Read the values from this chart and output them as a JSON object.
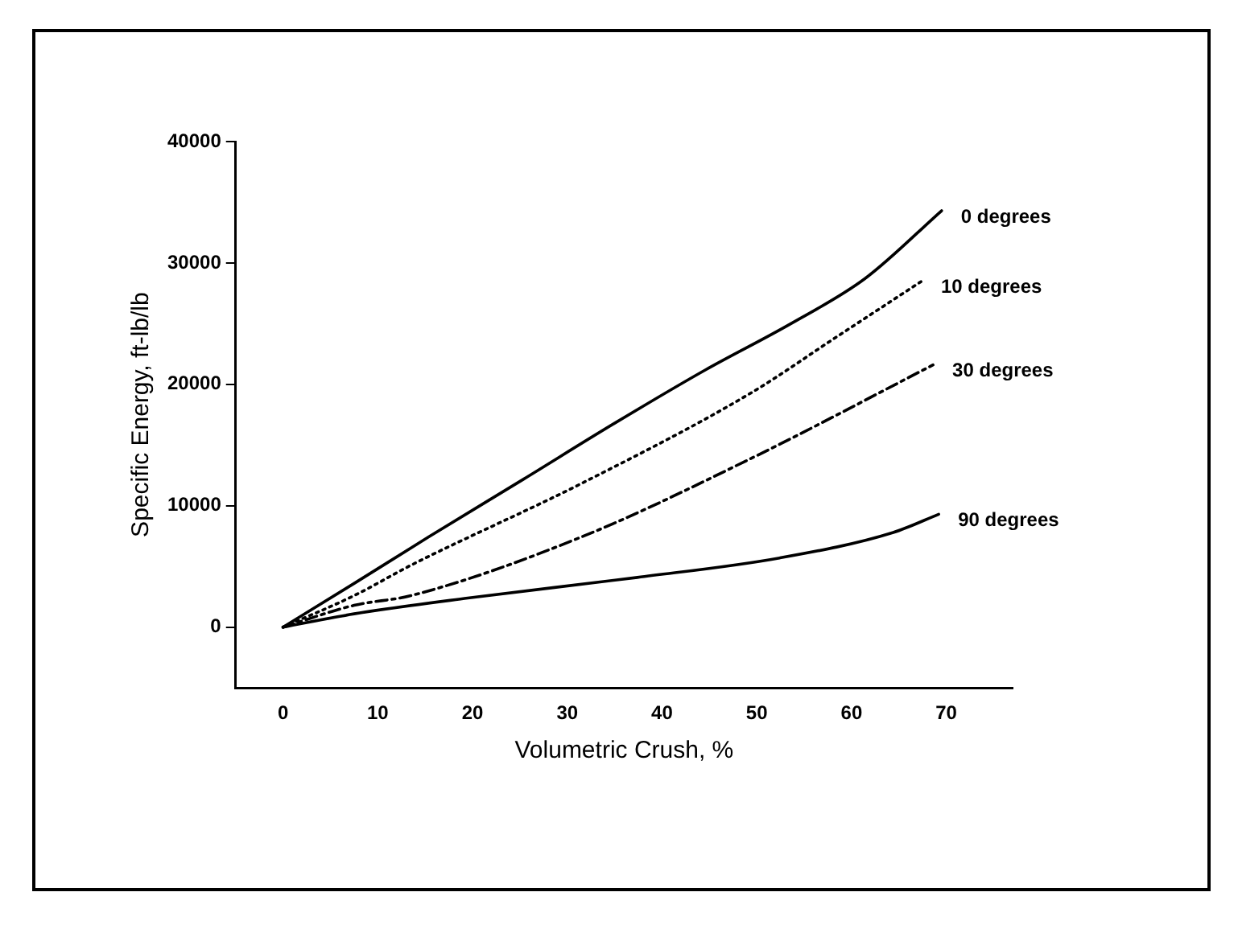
{
  "chart_data": {
    "type": "line",
    "xlabel": "Volumetric Crush, %",
    "ylabel": "Specific Energy, ft-lb/lb",
    "xlim": [
      -5,
      77
    ],
    "xticks": [
      0,
      10,
      20,
      30,
      40,
      50,
      60,
      70
    ],
    "ylim": [
      -5000,
      40000
    ],
    "yticks": [
      0,
      10000,
      20000,
      30000,
      40000
    ],
    "grid": false,
    "legend": false,
    "marker": "none",
    "series": [
      {
        "name": "0 degrees",
        "color": "#000000",
        "line_style": "solid",
        "x": [
          0,
          7.5,
          15.3,
          25.4,
          35,
          44.6,
          53.6,
          61.4,
          69.5
        ],
        "values": [
          0,
          3600,
          7400,
          12200,
          16800,
          21200,
          25000,
          28700,
          34300
        ]
      },
      {
        "name": "10 degrees",
        "color": "#000000",
        "line_style": "dotted",
        "x": [
          0,
          7.5,
          13.5,
          31.4,
          49.4,
          58.4,
          67.4
        ],
        "values": [
          0,
          2600,
          5100,
          11800,
          19300,
          23900,
          28500
        ]
      },
      {
        "name": "30 degrees",
        "color": "#000000",
        "line_style": "dashed",
        "x": [
          0,
          7.5,
          13.5,
          31.4,
          49.4,
          68.6
        ],
        "values": [
          0,
          1800,
          2600,
          7400,
          13900,
          21600
        ]
      },
      {
        "name": "90 degrees",
        "color": "#000000",
        "line_style": "solid",
        "x": [
          0,
          7.5,
          19.5,
          37.4,
          52.4,
          64.4,
          69.2
        ],
        "values": [
          0,
          1100,
          2400,
          4100,
          5700,
          7800,
          9300
        ]
      }
    ]
  }
}
